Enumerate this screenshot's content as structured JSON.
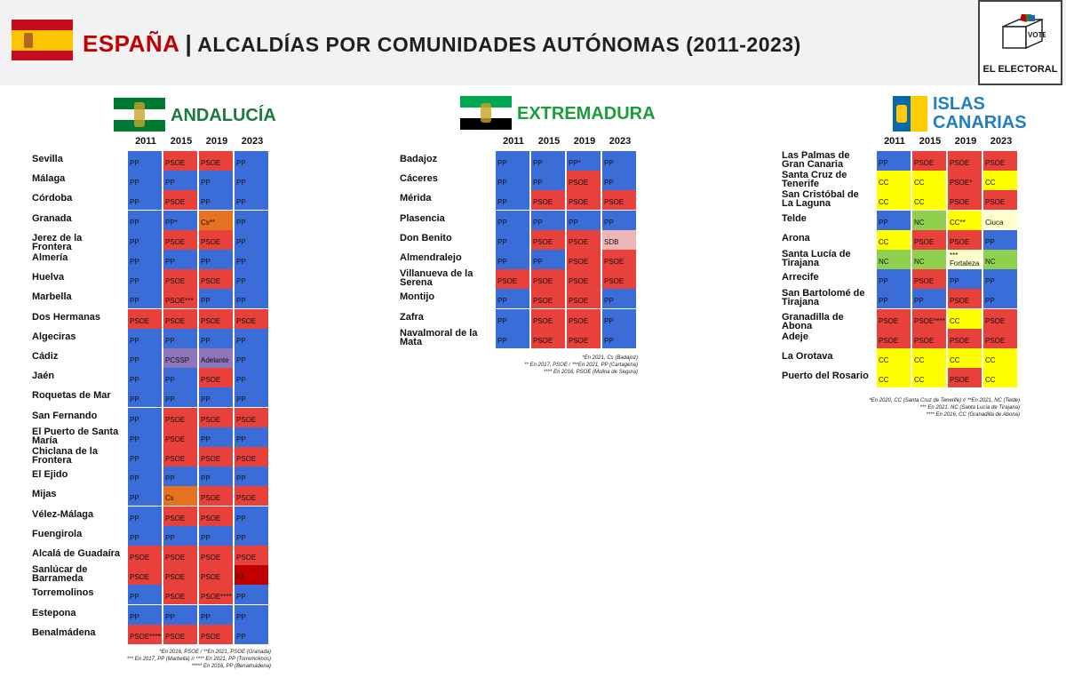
{
  "title": {
    "spain": "ESPAÑA",
    "separator": "|",
    "rest": "ALCALDÍAS POR COMUNIDADES AUTÓNOMAS (2011-2023)"
  },
  "logo": {
    "vote_text": "VOTE",
    "brand": "EL ELECTORAL"
  },
  "colors": {
    "PP": "#3b6dd8",
    "PSOE": "#e8403a",
    "Cs": "#e57220",
    "PCSSP": "#8e74b8",
    "Adelante": "#8e74b8",
    "SDB": "#f0b5b7",
    "CC": "#ffff00",
    "NC": "#8fd14f",
    "Ciuca": "#ffffcc",
    "Fortaleza": "#ffffcc",
    "IU": "#c00000"
  },
  "chart_data": [
    {
      "type": "table",
      "title": "ANDALUCÍA",
      "years": [
        "2011",
        "2015",
        "2019",
        "2023"
      ],
      "rows": [
        {
          "name": "Sevilla",
          "values": [
            "PP",
            "PSOE",
            "PSOE",
            "PP"
          ]
        },
        {
          "name": "Málaga",
          "values": [
            "PP",
            "PP",
            "PP",
            "PP"
          ]
        },
        {
          "name": "Córdoba",
          "values": [
            "PP",
            "PSOE",
            "PP",
            "PP"
          ]
        },
        {
          "name": "Granada",
          "values": [
            "PP",
            "PP*",
            "Cs**",
            "PP"
          ]
        },
        {
          "name": "Jerez de la Frontera",
          "values": [
            "PP",
            "PSOE",
            "PSOE",
            "PP"
          ]
        },
        {
          "name": "Almería",
          "values": [
            "PP",
            "PP",
            "PP",
            "PP"
          ]
        },
        {
          "name": "Huelva",
          "values": [
            "PP",
            "PSOE",
            "PSOE",
            "PP"
          ]
        },
        {
          "name": "Marbella",
          "values": [
            "PP",
            "PSOE***",
            "PP",
            "PP"
          ]
        },
        {
          "name": "Dos Hermanas",
          "values": [
            "PSOE",
            "PSOE",
            "PSOE",
            "PSOE"
          ]
        },
        {
          "name": "Algeciras",
          "values": [
            "PP",
            "PP",
            "PP",
            "PP"
          ]
        },
        {
          "name": "Cádiz",
          "values": [
            "PP",
            "PCSSP",
            "Adelante",
            "PP"
          ]
        },
        {
          "name": "Jaén",
          "values": [
            "PP",
            "PP",
            "PSOE",
            "PP"
          ]
        },
        {
          "name": "Roquetas de Mar",
          "values": [
            "PP",
            "PP",
            "PP",
            "PP"
          ]
        },
        {
          "name": "San Fernando",
          "values": [
            "PP",
            "PSOE",
            "PSOE",
            "PSOE"
          ]
        },
        {
          "name": "El Puerto de Santa María",
          "values": [
            "PP",
            "PSOE",
            "PP",
            "PP"
          ]
        },
        {
          "name": "Chiclana de la Frontera",
          "values": [
            "PP",
            "PSOE",
            "PSOE",
            "PSOE"
          ]
        },
        {
          "name": "El Ejido",
          "values": [
            "PP",
            "PP",
            "PP",
            "PP"
          ]
        },
        {
          "name": "Mijas",
          "values": [
            "PP",
            "Cs",
            "PSOE",
            "PSOE"
          ]
        },
        {
          "name": "Vélez-Málaga",
          "values": [
            "PP",
            "PSOE",
            "PSOE",
            "PP"
          ]
        },
        {
          "name": "Fuengirola",
          "values": [
            "PP",
            "PP",
            "PP",
            "PP"
          ]
        },
        {
          "name": "Alcalá de Guadaíra",
          "values": [
            "PSOE",
            "PSOE",
            "PSOE",
            "PSOE"
          ]
        },
        {
          "name": "Sanlúcar de Barrameda",
          "values": [
            "PSOE",
            "PSOE",
            "PSOE",
            "IU"
          ]
        },
        {
          "name": "Torremolinos",
          "values": [
            "PP",
            "PSOE",
            "PSOE****",
            "PP"
          ]
        },
        {
          "name": "Estepona",
          "values": [
            "PP",
            "PP",
            "PP",
            "PP"
          ]
        },
        {
          "name": "Benalmádena",
          "values": [
            "PSOE*****",
            "PSOE",
            "PSOE",
            "PP"
          ]
        }
      ],
      "notes": [
        "*En 2016, PSOE / **En 2021, PSOE (Granada)",
        "*** En 2017, PP (Marbella) // **** En 2021, PP (Torremolinos)",
        "***** En 2016, PP (Benalmádena)"
      ]
    },
    {
      "type": "table",
      "title": "EXTREMADURA",
      "years": [
        "2011",
        "2015",
        "2019",
        "2023"
      ],
      "rows": [
        {
          "name": "Badajoz",
          "values": [
            "PP",
            "PP",
            "PP*",
            "PP"
          ]
        },
        {
          "name": "Cáceres",
          "values": [
            "PP",
            "PP",
            "PSOE",
            "PP"
          ]
        },
        {
          "name": "Mérida",
          "values": [
            "PP",
            "PSOE",
            "PSOE",
            "PSOE"
          ]
        },
        {
          "name": "Plasencia",
          "values": [
            "PP",
            "PP",
            "PP",
            "PP"
          ]
        },
        {
          "name": "Don Benito",
          "values": [
            "PP",
            "PSOE",
            "PSOE",
            "SDB"
          ]
        },
        {
          "name": "Almendralejo",
          "values": [
            "PP",
            "PP",
            "PSOE",
            "PSOE"
          ]
        },
        {
          "name": "Villanueva de la Serena",
          "values": [
            "PSOE",
            "PSOE",
            "PSOE",
            "PSOE"
          ]
        },
        {
          "name": "Montijo",
          "values": [
            "PP",
            "PSOE",
            "PSOE",
            "PP"
          ]
        },
        {
          "name": "Zafra",
          "values": [
            "PP",
            "PSOE",
            "PSOE",
            "PP"
          ]
        },
        {
          "name": "Navalmoral de la Mata",
          "values": [
            "PP",
            "PSOE",
            "PSOE",
            "PP"
          ]
        }
      ],
      "notes": [
        "*En 2021, Cs (Badajoz)",
        "** En 2017, PSOE / ***En 2021, PP (Cartagena)",
        "**** En 2016, PSOE (Molina de Segura)"
      ]
    },
    {
      "type": "table",
      "title": "ISLAS CANARIAS",
      "years": [
        "2011",
        "2015",
        "2019",
        "2023"
      ],
      "rows": [
        {
          "name": "Las Palmas de Gran Canaria",
          "values": [
            "PP",
            "PSOE",
            "PSOE",
            "PSOE"
          ]
        },
        {
          "name": "Santa Cruz de Tenerife",
          "values": [
            "CC",
            "CC",
            "PSOE*",
            "CC"
          ]
        },
        {
          "name": "San Cristóbal de La Laguna",
          "values": [
            "CC",
            "CC",
            "PSOE",
            "PSOE"
          ]
        },
        {
          "name": "Telde",
          "values": [
            "PP",
            "NC",
            "CC**",
            "Ciuca"
          ]
        },
        {
          "name": "Arona",
          "values": [
            "CC",
            "PSOE",
            "PSOE",
            "PP"
          ]
        },
        {
          "name": "Santa Lucía de Tirajana",
          "values": [
            "NC",
            "NC",
            "***\nFortaleza",
            "NC"
          ]
        },
        {
          "name": "Arrecife",
          "values": [
            "PP",
            "PSOE",
            "PP",
            "PP"
          ]
        },
        {
          "name": "San Bartolomé de Tirajana",
          "values": [
            "PP",
            "PP",
            "PSOE",
            "PP"
          ]
        },
        {
          "name": "Granadilla de Abona",
          "values": [
            "PSOE",
            "PSOE****",
            "CC",
            "PSOE"
          ]
        },
        {
          "name": "Adeje",
          "values": [
            "PSOE",
            "PSOE",
            "PSOE",
            "PSOE"
          ]
        },
        {
          "name": "La Orotava",
          "values": [
            "CC",
            "CC",
            "CC",
            "CC"
          ]
        },
        {
          "name": "Puerto del Rosario",
          "values": [
            "CC",
            "CC",
            "PSOE",
            "CC"
          ]
        }
      ],
      "notes": [
        "*En 2020, CC (Santa Cruz de Tenerife) // **En 2021, NC (Telde)",
        "*** En 2021, NC (Santa Lucía de Tirajana)",
        "**** En 2016, CC (Granadilla de Abona)"
      ]
    }
  ]
}
